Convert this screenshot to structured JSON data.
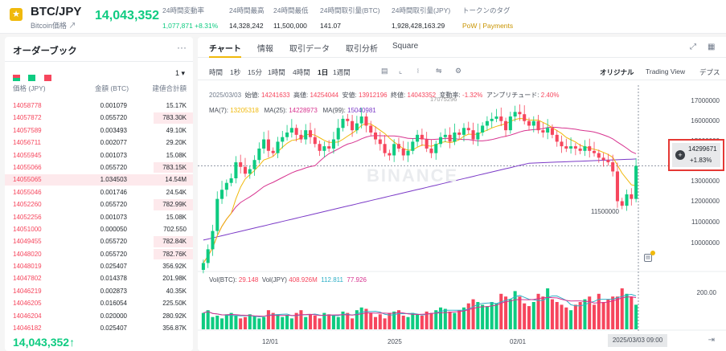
{
  "header": {
    "pair": "BTC/JPY",
    "pair_sub": "Bitcoin価格 ↗",
    "last_price": "14,043,352",
    "stats": [
      {
        "label": "24時間変動率",
        "value": "1,077,871 +8.31%",
        "color": "green"
      },
      {
        "label": "24時間最高",
        "value": "14,328,242",
        "color": ""
      },
      {
        "label": "24時間最低",
        "value": "11,500,000",
        "color": ""
      },
      {
        "label": "24時間取引量(BTC)",
        "value": "141.07",
        "color": ""
      },
      {
        "label": "24時間取引量(JPY)",
        "value": "1,928,428,163.29",
        "color": ""
      },
      {
        "label": "トークンのタグ",
        "value": "PoW | Payments",
        "color": "orange"
      }
    ]
  },
  "orderbook": {
    "title": "オーダーブック",
    "more": "···",
    "step": "1 ▾",
    "col_price": "価格 (JPY)",
    "col_amount": "金額 (BTC)",
    "col_total": "建値合計額",
    "rows": [
      {
        "price": "14058778",
        "amount": "0.001079",
        "total": "15.17K",
        "depth": 0
      },
      {
        "price": "14057872",
        "amount": "0.055720",
        "total": "783.30K",
        "depth": 0.21
      },
      {
        "price": "14057589",
        "amount": "0.003493",
        "total": "49.10K",
        "depth": 0
      },
      {
        "price": "14056711",
        "amount": "0.002077",
        "total": "29.20K",
        "depth": 0
      },
      {
        "price": "14055945",
        "amount": "0.001073",
        "total": "15.08K",
        "depth": 0
      },
      {
        "price": "14055066",
        "amount": "0.055720",
        "total": "783.15K",
        "depth": 0.21
      },
      {
        "price": "14055065",
        "amount": "1.034503",
        "total": "14.54M",
        "depth": 1.0
      },
      {
        "price": "14055046",
        "amount": "0.001746",
        "total": "24.54K",
        "depth": 0
      },
      {
        "price": "14052260",
        "amount": "0.055720",
        "total": "782.99K",
        "depth": 0.21
      },
      {
        "price": "14052256",
        "amount": "0.001073",
        "total": "15.08K",
        "depth": 0
      },
      {
        "price": "14051000",
        "amount": "0.000050",
        "total": "702.550",
        "depth": 0
      },
      {
        "price": "14049455",
        "amount": "0.055720",
        "total": "782.84K",
        "depth": 0.21
      },
      {
        "price": "14048020",
        "amount": "0.055720",
        "total": "782.76K",
        "depth": 0.21
      },
      {
        "price": "14048019",
        "amount": "0.025407",
        "total": "356.92K",
        "depth": 0
      },
      {
        "price": "14047802",
        "amount": "0.014378",
        "total": "201.98K",
        "depth": 0
      },
      {
        "price": "14046219",
        "amount": "0.002873",
        "total": "40.35K",
        "depth": 0
      },
      {
        "price": "14046205",
        "amount": "0.016054",
        "total": "225.50K",
        "depth": 0
      },
      {
        "price": "14046204",
        "amount": "0.020000",
        "total": "280.92K",
        "depth": 0
      },
      {
        "price": "14046182",
        "amount": "0.025407",
        "total": "356.87K",
        "depth": 0
      }
    ],
    "last_price": "14,043,352↑"
  },
  "chart_panel": {
    "tabs": [
      "チャート",
      "情報",
      "取引データ",
      "取引分析",
      "Square"
    ],
    "intervals": [
      "時間",
      "1秒",
      "15分",
      "1時間",
      "4時間",
      "1日",
      "1週間"
    ],
    "views": [
      "オリジナル",
      "Trading View",
      "デプス"
    ],
    "ohlc": {
      "date": "2025/03/03",
      "open_label": "始値:",
      "open": "14241633",
      "high_label": "高値:",
      "high": "14254044",
      "low_label": "安値:",
      "low": "13912196",
      "close_label": "終値:",
      "close": "14043352",
      "change_label": "変動率:",
      "change": "-1.32%",
      "amp_label": "アンプリチュード:",
      "amp": "2.40%"
    },
    "ma": {
      "ma7_label": "MA(7):",
      "ma7": "13205318",
      "ma25_label": "MA(25):",
      "ma25": "14228973",
      "ma99_label": "MA(99):",
      "ma99": "15040981"
    },
    "vol": {
      "btc_label": "Vol(BTC):",
      "btc": "29.148",
      "jpy_label": "Vol(JPY)",
      "jpy": "408.926M",
      "v1": "112.811",
      "v2": "77.926"
    },
    "y_ticks": [
      "17000000",
      "16000000",
      "15000000",
      "14000000",
      "13000000",
      "12000000",
      "11000000",
      "10000000"
    ],
    "vol_tick": "200.00",
    "x_ticks": [
      "12/01",
      "2025",
      "02/01"
    ],
    "time_badge": "2025/03/03 09:00",
    "price_tag": {
      "value": "14299671",
      "change": "+1.83%"
    },
    "low_marker": "11500000",
    "high_marker": "17075296",
    "watermark": "BINANCE",
    "colors": {
      "up": "#0ecb81",
      "down": "#f6465d",
      "ma7": "#f0b90b",
      "ma25": "#d7338f",
      "ma99": "#7b3ac7"
    }
  },
  "chart_data": {
    "type": "candlestick",
    "title": "BTC/JPY",
    "ylim": [
      9500000,
      17500000
    ],
    "x_labels": [
      "12/01",
      "2025",
      "02/01"
    ],
    "closes": [
      9800000,
      10400000,
      11200000,
      12600000,
      13000000,
      13300000,
      13500000,
      14200000,
      14000000,
      13700000,
      13900000,
      14300000,
      14800000,
      15200000,
      14700000,
      14600000,
      15100000,
      15300000,
      15500000,
      15700000,
      15400000,
      15200000,
      15600000,
      15300000,
      15000000,
      14700000,
      14900000,
      14800000,
      15200000,
      15700000,
      16100000,
      16000000,
      15600000,
      15900000,
      16200000,
      15800000,
      15500000,
      15200000,
      15000000,
      14600000,
      14500000,
      15000000,
      14800000,
      14500000,
      14700000,
      15100000,
      15400000,
      15200000,
      14800000,
      14600000,
      15000000,
      15300000,
      15400000,
      15100000,
      15500000,
      15400000,
      15700000,
      15600000,
      15200000,
      15500000,
      15800000,
      16000000,
      16100000,
      16200000,
      16000000,
      15600000,
      16200000,
      16400000,
      16300000,
      16000000,
      15800000,
      16000000,
      15600000,
      15500000,
      15700000,
      15400000,
      15100000,
      14900000,
      14800000,
      14900000,
      14800000,
      14700000,
      14900000,
      14700000,
      14600000,
      14400000,
      14300000,
      14200000,
      13800000,
      12500000,
      12300000,
      12800000,
      12600000,
      14043352
    ],
    "volumes": [
      60,
      70,
      45,
      50,
      40,
      55,
      60,
      50,
      40,
      45,
      55,
      50,
      40,
      45,
      70,
      60,
      55,
      45,
      50,
      40,
      60,
      70,
      45,
      55,
      50,
      40,
      60,
      55,
      50,
      45,
      65,
      60,
      40,
      70,
      80,
      75,
      60,
      45,
      55,
      40,
      60,
      65,
      70,
      50,
      45,
      60,
      55,
      50,
      65,
      60,
      70,
      80,
      75,
      65,
      60,
      70,
      80,
      95,
      110,
      100,
      90,
      85,
      100,
      95,
      130,
      120,
      110,
      140,
      120,
      95,
      85,
      100,
      130,
      120,
      150,
      110,
      100,
      90,
      80,
      70,
      90,
      100,
      110,
      120,
      90,
      130,
      100,
      110,
      120,
      120,
      150,
      130,
      120,
      90
    ]
  }
}
